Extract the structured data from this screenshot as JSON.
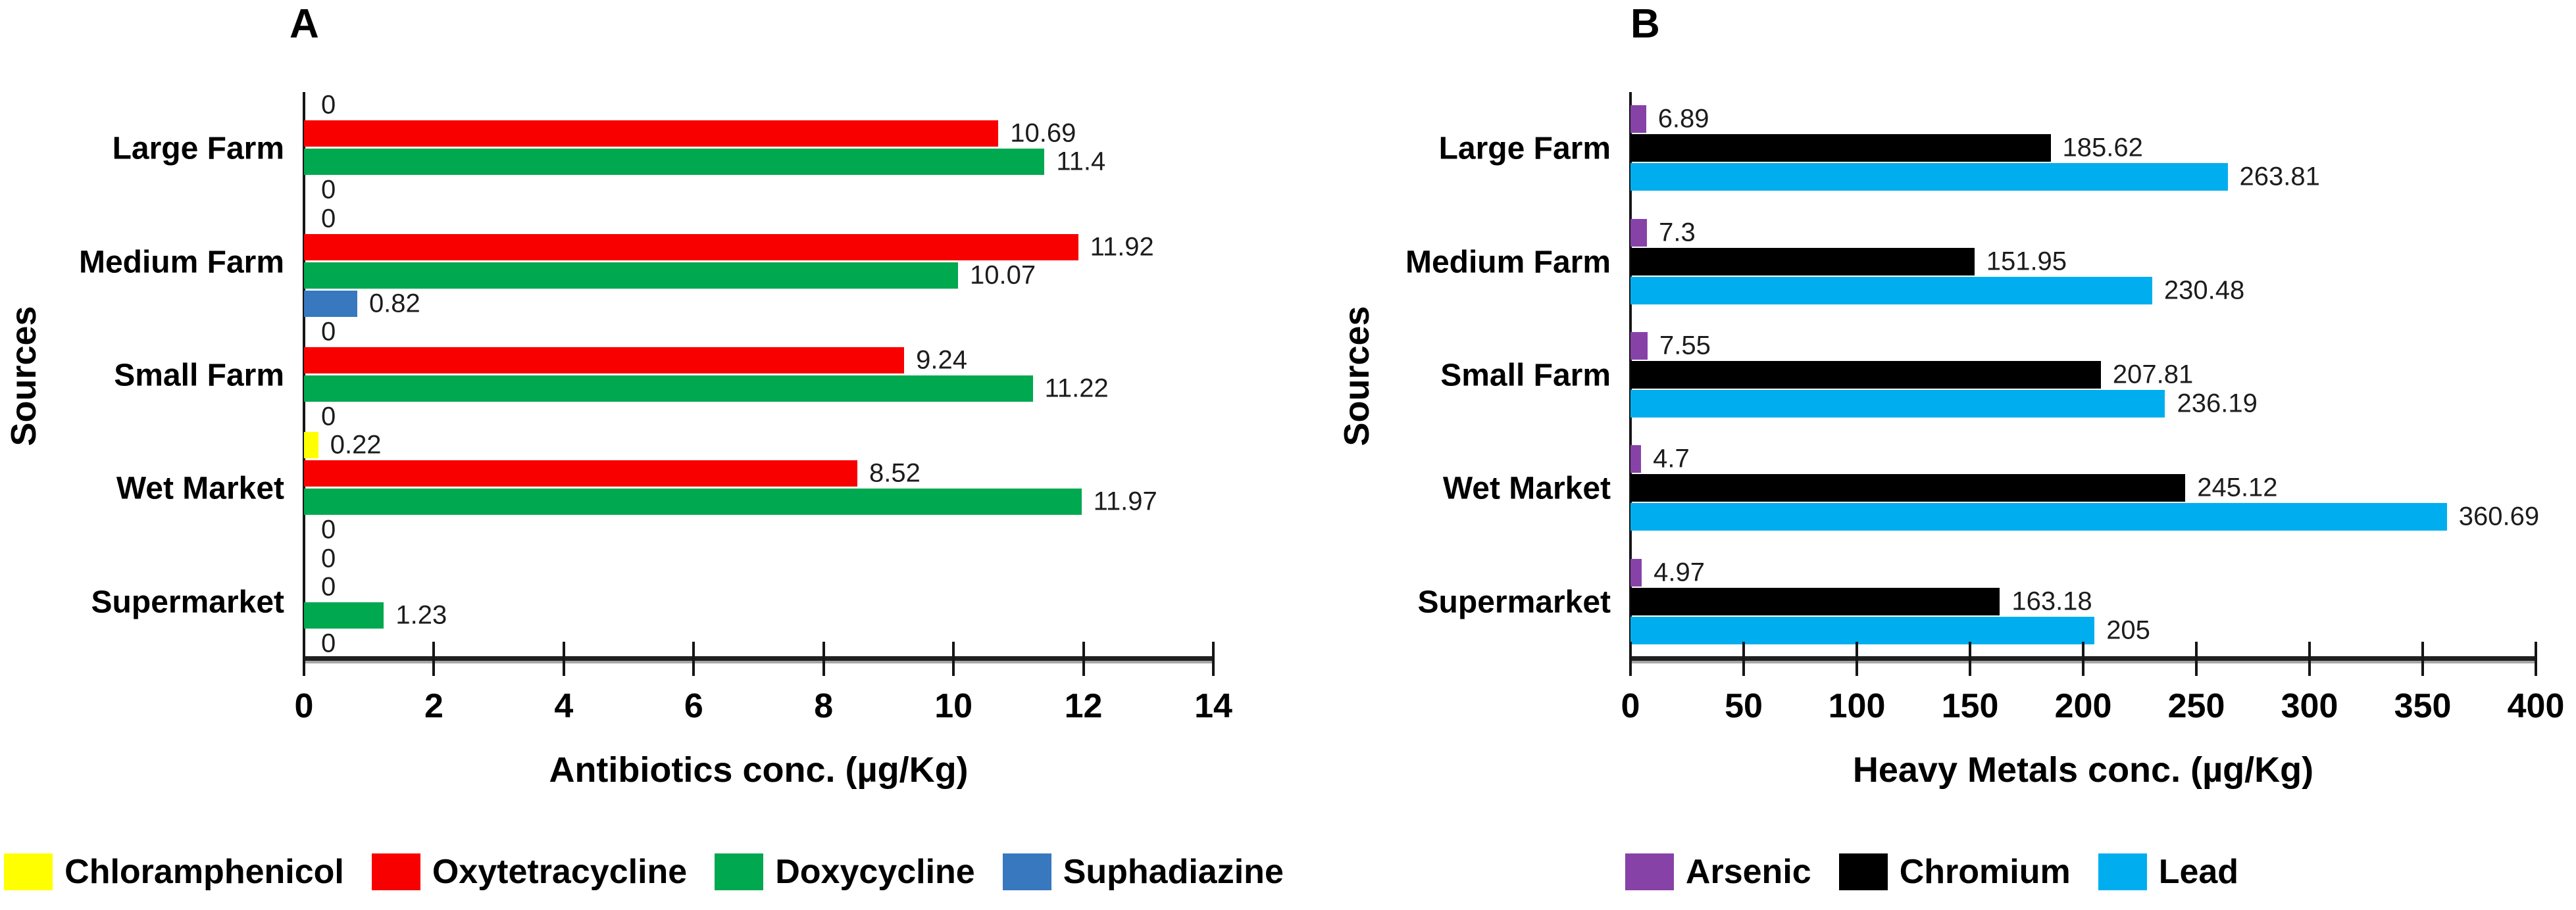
{
  "figure": {
    "background": "#ffffff",
    "y_axis_title": "Sources"
  },
  "chart_data": [
    {
      "id": "A",
      "panel_label": "A",
      "type": "bar",
      "orientation": "horizontal",
      "xlabel": "Antibiotics conc. (µg/Kg)",
      "ylabel": "Sources",
      "categories": [
        "Large Farm",
        "Medium Farm",
        "Small Farm",
        "Wet Market",
        "Supermarket"
      ],
      "series": [
        {
          "name": "Chloramphenicol",
          "color": "#FFFF00",
          "values": [
            0,
            0,
            0,
            0.22,
            0
          ]
        },
        {
          "name": "Oxytetracycline",
          "color": "#F80000",
          "values": [
            10.69,
            11.92,
            9.24,
            8.52,
            0
          ]
        },
        {
          "name": "Doxycycline",
          "color": "#00A84F",
          "values": [
            11.4,
            10.07,
            11.22,
            11.97,
            1.23
          ]
        },
        {
          "name": "Suphadiazine",
          "color": "#3778BE",
          "values": [
            0,
            0.82,
            0,
            0,
            0
          ]
        }
      ],
      "xlim": [
        0,
        14
      ],
      "xticks": [
        0,
        2,
        4,
        6,
        8,
        10,
        12,
        14
      ],
      "value_labels": true,
      "grid": false,
      "legend_position": "bottom"
    },
    {
      "id": "B",
      "panel_label": "B",
      "type": "bar",
      "orientation": "horizontal",
      "xlabel": "Heavy Metals conc. (µg/Kg)",
      "ylabel": "Sources",
      "categories": [
        "Large Farm",
        "Medium Farm",
        "Small Farm",
        "Wet Market",
        "Supermarket"
      ],
      "series": [
        {
          "name": "Arsenic",
          "color": "#8742A8",
          "values": [
            6.89,
            7.3,
            7.55,
            4.7,
            4.97
          ]
        },
        {
          "name": "Chromium",
          "color": "#000000",
          "values": [
            185.62,
            151.95,
            207.81,
            245.12,
            163.18
          ]
        },
        {
          "name": "Lead",
          "color": "#00AEEF",
          "values": [
            263.81,
            230.48,
            236.19,
            360.69,
            205
          ]
        }
      ],
      "xlim": [
        0,
        400
      ],
      "xticks": [
        0,
        50,
        100,
        150,
        200,
        250,
        300,
        350,
        400
      ],
      "value_labels": true,
      "grid": false,
      "legend_position": "bottom"
    }
  ]
}
